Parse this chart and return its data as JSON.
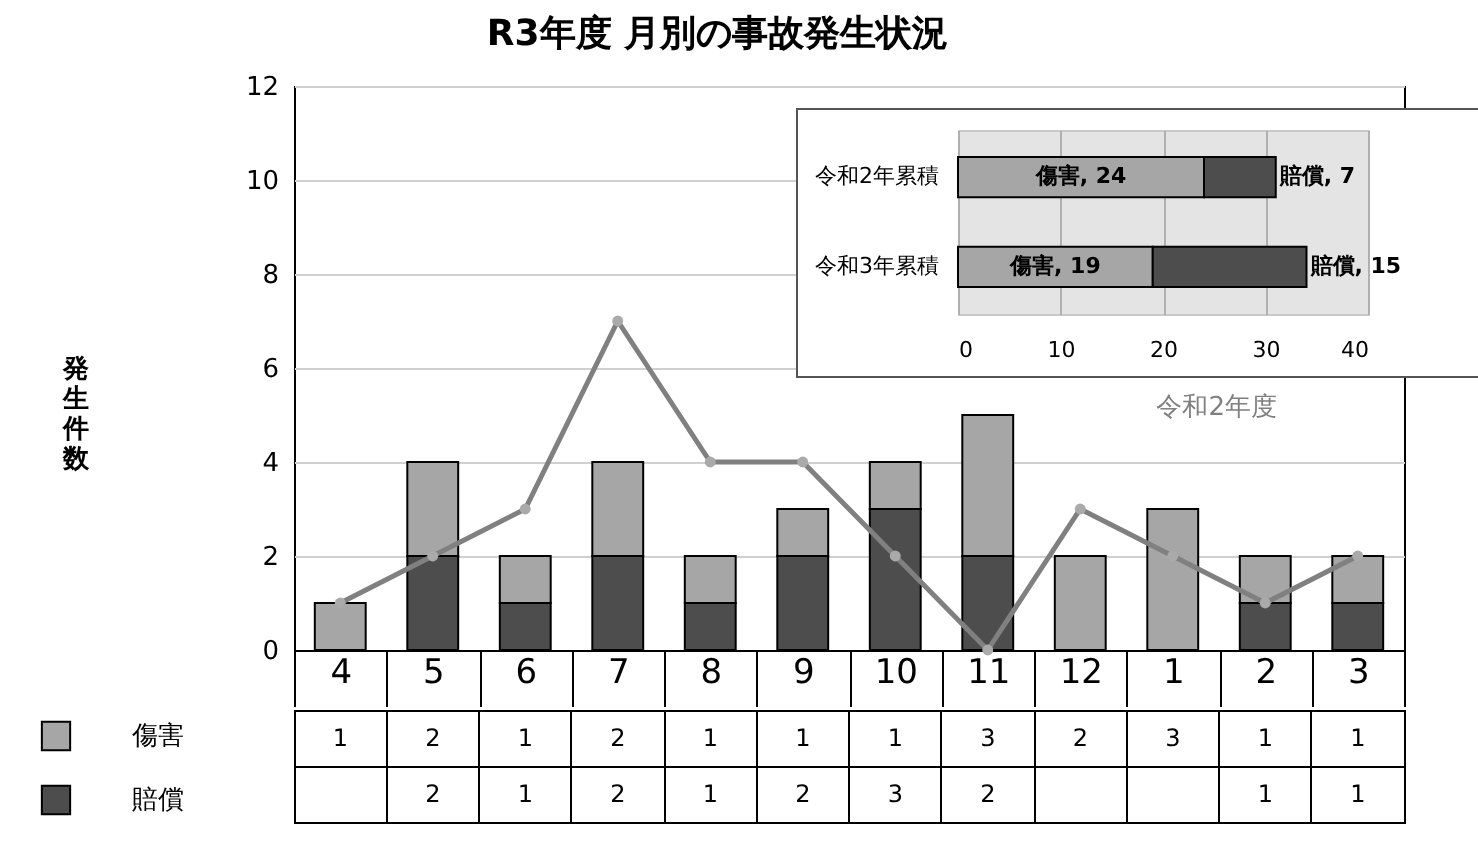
{
  "chart_data": [
    {
      "type": "bar",
      "title": "R3年度 月別の事故発生状況",
      "ylabel": "発生件数",
      "categories": [
        "4",
        "5",
        "6",
        "7",
        "8",
        "9",
        "10",
        "11",
        "12",
        "1",
        "2",
        "3"
      ],
      "stacked": true,
      "series": [
        {
          "name": "賠償",
          "color": "#4d4d4d",
          "values": [
            null,
            2,
            1,
            2,
            1,
            2,
            3,
            2,
            null,
            null,
            1,
            1
          ],
          "value_labels": [
            null,
            "2",
            "1",
            "2",
            "1",
            "2",
            "3",
            "2",
            null,
            null,
            "1",
            "1"
          ]
        },
        {
          "name": "傷害",
          "color": "#a6a6a6",
          "values": [
            1,
            2,
            1,
            2,
            1,
            1,
            1,
            3,
            2,
            3,
            1,
            1
          ],
          "value_labels": [
            "1",
            "2",
            "1",
            "2",
            "1",
            "1",
            "1",
            "3",
            "2",
            "3",
            "1",
            "1"
          ]
        },
        {
          "name": "令和2年度",
          "type": "line",
          "color": "#808080",
          "values": [
            1,
            2,
            3,
            7,
            4,
            4,
            2,
            0,
            3,
            2,
            1,
            2
          ]
        }
      ],
      "ylim": [
        0,
        12
      ],
      "yticks": [
        0,
        2,
        4,
        6,
        8,
        10,
        12
      ],
      "grid": "y",
      "legend": "bottom",
      "marker": "circle"
    },
    {
      "type": "bar",
      "orientation": "horizontal",
      "stacked": true,
      "categories": [
        "令和2年累積",
        "令和3年累積"
      ],
      "series": [
        {
          "color": "#a6a6a6",
          "values": [
            24,
            19
          ],
          "value_labels": [
            "傷害, 24",
            "傷害, 19"
          ]
        },
        {
          "color": "#4d4d4d",
          "values": [
            7,
            15
          ],
          "value_labels": [
            "賠償, 7",
            "賠償, 15"
          ]
        }
      ],
      "xlim": [
        0,
        40
      ],
      "xticks": [
        0,
        10,
        20,
        30,
        40
      ],
      "grid": "x"
    }
  ]
}
